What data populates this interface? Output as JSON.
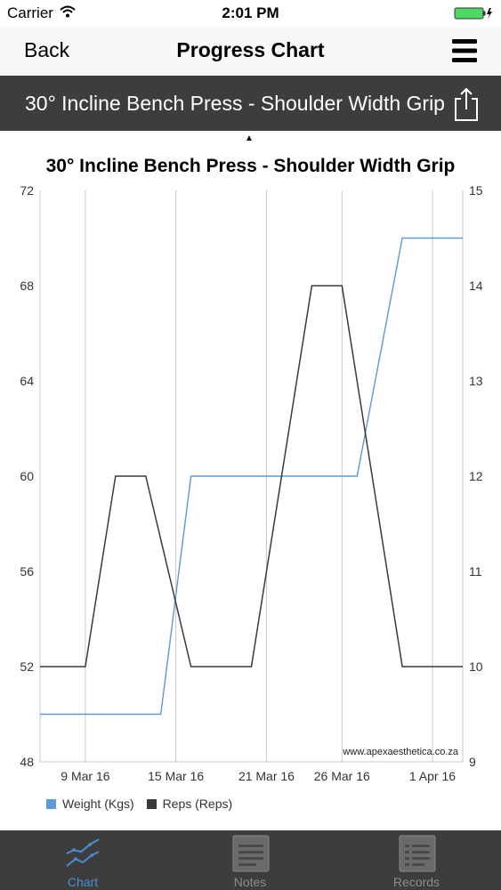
{
  "status": {
    "carrier": "Carrier",
    "time": "2:01 PM"
  },
  "nav": {
    "back_label": "Back",
    "title": "Progress Chart"
  },
  "exercise": {
    "name": "30° Incline Bench Press - Shoulder Width Grip"
  },
  "icons": {
    "menu": "hamburger-menu-icon",
    "share": "share-icon"
  },
  "colors": {
    "weight": "#5b9bd5",
    "reps": "#3a3a3a",
    "bar": "#3d3d3d",
    "active_tab": "#4a8fd0"
  },
  "chart_data": {
    "type": "line",
    "title": "30° Incline Bench Press - Shoulder Width Grip",
    "watermark": "www.apexaesthetica.co.za",
    "x_tick_labels": [
      "9 Mar 16",
      "15 Mar 16",
      "21 Mar 16",
      "26 Mar 16",
      "1 Apr 16"
    ],
    "x_tick_dates": [
      "2016-03-09",
      "2016-03-15",
      "2016-03-21",
      "2016-03-26",
      "2016-04-01"
    ],
    "x_range": [
      "2016-03-06",
      "2016-04-03"
    ],
    "y_left": {
      "label": "Weight (Kgs)",
      "ticks": [
        "48",
        "52",
        "56",
        "60",
        "64",
        "68",
        "72"
      ],
      "range": [
        48,
        72
      ]
    },
    "y_right": {
      "label": "Reps (Reps)",
      "ticks": [
        "9",
        "10",
        "11",
        "12",
        "13",
        "14",
        "15"
      ],
      "range": [
        9,
        15
      ]
    },
    "grid": "vertical",
    "legend_position": "bottom-left",
    "series": [
      {
        "name": "Weight (Kgs)",
        "axis": "left",
        "points": [
          {
            "x": "2016-03-06",
            "y": 50
          },
          {
            "x": "2016-03-13",
            "y": 50
          },
          {
            "x": "2016-03-14",
            "y": 50
          },
          {
            "x": "2016-03-16",
            "y": 60
          },
          {
            "x": "2016-03-27",
            "y": 60
          },
          {
            "x": "2016-03-30",
            "y": 70
          },
          {
            "x": "2016-04-03",
            "y": 70
          }
        ]
      },
      {
        "name": "Reps (Reps)",
        "axis": "right",
        "points": [
          {
            "x": "2016-03-06",
            "y": 10
          },
          {
            "x": "2016-03-09",
            "y": 10
          },
          {
            "x": "2016-03-11",
            "y": 12
          },
          {
            "x": "2016-03-13",
            "y": 12
          },
          {
            "x": "2016-03-16",
            "y": 10
          },
          {
            "x": "2016-03-20",
            "y": 10
          },
          {
            "x": "2016-03-24",
            "y": 14
          },
          {
            "x": "2016-03-26",
            "y": 14
          },
          {
            "x": "2016-03-30",
            "y": 10
          },
          {
            "x": "2016-04-03",
            "y": 10
          }
        ]
      }
    ]
  },
  "tabs": [
    {
      "label": "Chart",
      "icon": "chart-icon",
      "active": true
    },
    {
      "label": "Notes",
      "icon": "notes-icon",
      "active": false
    },
    {
      "label": "Records",
      "icon": "records-icon",
      "active": false
    }
  ]
}
